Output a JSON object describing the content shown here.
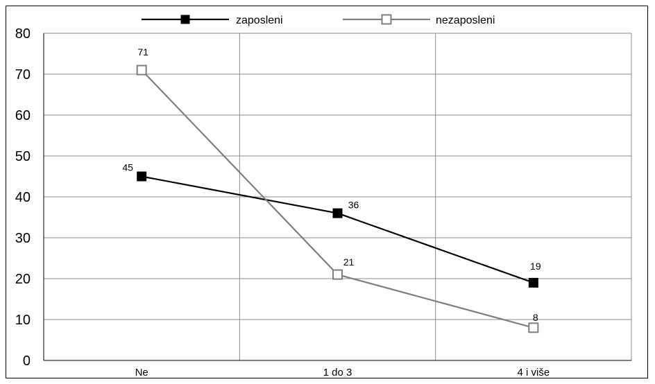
{
  "chart_data": {
    "type": "line",
    "categories": [
      "Ne",
      "1 do 3",
      "4 i više"
    ],
    "ylim": [
      0,
      80
    ],
    "yticks": [
      0,
      10,
      20,
      30,
      40,
      50,
      60,
      70,
      80
    ],
    "grid": true,
    "legend_position": "top",
    "series": [
      {
        "name": "zaposleni",
        "values": [
          45,
          36,
          19
        ],
        "color": "#000000",
        "marker": "filled-square"
      },
      {
        "name": "nezaposleni",
        "values": [
          71,
          21,
          8
        ],
        "color": "#7f7f7f",
        "marker": "hollow-square"
      }
    ]
  }
}
